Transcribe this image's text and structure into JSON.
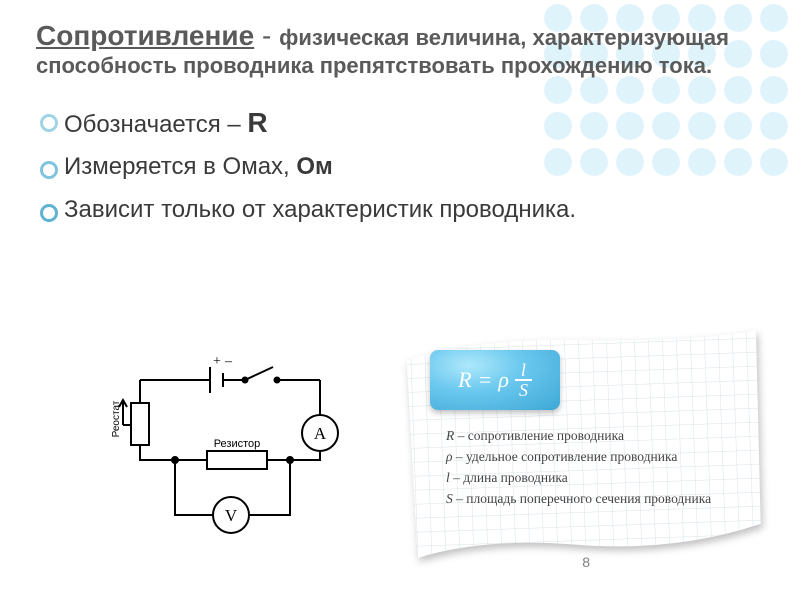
{
  "title": {
    "main": "Сопротивление",
    "dash": "  - ",
    "rest": "физическая величина, характеризующая способность проводника препятствовать прохождению тока.",
    "color": "#5a5a5a",
    "main_fontsize": 28,
    "rest_fontsize": 22
  },
  "bullets": [
    {
      "prefix": "Обозначается – ",
      "strong": "R",
      "suffix": "",
      "marker_color": "#9fd3e6"
    },
    {
      "prefix": "Измеряется в Омах, ",
      "strong": "Ом",
      "suffix": "",
      "marker_color": "#7fc3dc"
    },
    {
      "prefix": "Зависит только от характеристик проводника.",
      "strong": "",
      "suffix": "",
      "marker_color": "#5fb3d2"
    }
  ],
  "circuit": {
    "labels": {
      "rheostat": "Реостат",
      "resistor": "Резистор",
      "ammeter": "A",
      "voltmeter": "V",
      "plus": "+",
      "minus": "–"
    },
    "stroke": "#000000",
    "stroke_width": 2,
    "font_family": "Times New Roman"
  },
  "formula_card": {
    "paper": {
      "grid_color": "#d9e3ea",
      "bg_color": "#ffffff",
      "tilt_deg": -2
    },
    "box": {
      "bg_gradient": [
        "#aee8fb",
        "#6cc9ef",
        "#3da7d6"
      ],
      "text_color": "#ffffff",
      "R": "R",
      "eq": "=",
      "rho": "ρ",
      "l": "l",
      "S": "S"
    },
    "legend": [
      {
        "sym": "R",
        "text": " – сопротивление проводника"
      },
      {
        "sym": "ρ",
        "text": " – удельное сопротивление проводника"
      },
      {
        "sym": "l",
        "text": " – длина проводника"
      },
      {
        "sym": "S",
        "text": " – площадь поперечного сечения проводника"
      }
    ]
  },
  "dots_bg": {
    "cols": 7,
    "rows": 5,
    "spacing": 36,
    "radius": 14,
    "color": "#dff3fb"
  },
  "page_number": "8"
}
